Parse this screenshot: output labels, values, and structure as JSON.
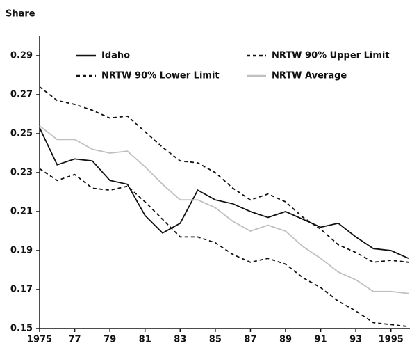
{
  "chart_data": {
    "type": "line",
    "y_label": "Share",
    "x": [
      1975,
      1976,
      1977,
      1978,
      1979,
      1980,
      1981,
      1982,
      1983,
      1984,
      1985,
      1986,
      1987,
      1988,
      1989,
      1990,
      1991,
      1992,
      1993,
      1994,
      1995,
      1996
    ],
    "series": [
      {
        "name": "Idaho",
        "color": "#111111",
        "style": "solid",
        "values": [
          0.253,
          0.234,
          0.237,
          0.236,
          0.226,
          0.224,
          0.208,
          0.199,
          0.204,
          0.221,
          0.216,
          0.214,
          0.21,
          0.207,
          0.21,
          0.206,
          0.202,
          0.204,
          0.197,
          0.191,
          0.19,
          0.186
        ]
      },
      {
        "name": "NRTW 90% Upper Limit",
        "color": "#111111",
        "style": "dashed",
        "values": [
          0.274,
          0.267,
          0.265,
          0.262,
          0.258,
          0.259,
          0.251,
          0.243,
          0.236,
          0.235,
          0.23,
          0.222,
          0.216,
          0.219,
          0.215,
          0.207,
          0.201,
          0.193,
          0.189,
          0.184,
          0.185,
          0.184
        ]
      },
      {
        "name": "NRTW 90% Lower Limit",
        "color": "#111111",
        "style": "dashed",
        "values": [
          0.232,
          0.226,
          0.229,
          0.222,
          0.221,
          0.223,
          0.215,
          0.206,
          0.197,
          0.197,
          0.194,
          0.188,
          0.184,
          0.186,
          0.183,
          0.176,
          0.171,
          0.164,
          0.159,
          0.153,
          0.152,
          0.151
        ]
      },
      {
        "name": "NRTW Average",
        "color": "#c0c0c0",
        "style": "solid",
        "values": [
          0.254,
          0.247,
          0.247,
          0.242,
          0.24,
          0.241,
          0.233,
          0.224,
          0.216,
          0.216,
          0.212,
          0.205,
          0.2,
          0.203,
          0.2,
          0.192,
          0.186,
          0.179,
          0.175,
          0.169,
          0.169,
          0.168
        ]
      }
    ],
    "xlim": [
      1975,
      1996
    ],
    "xticks": [
      {
        "value": 1975,
        "label": "1975"
      },
      {
        "value": 1977,
        "label": "77"
      },
      {
        "value": 1979,
        "label": "79"
      },
      {
        "value": 1981,
        "label": "81"
      },
      {
        "value": 1983,
        "label": "83"
      },
      {
        "value": 1985,
        "label": "85"
      },
      {
        "value": 1987,
        "label": "87"
      },
      {
        "value": 1989,
        "label": "89"
      },
      {
        "value": 1991,
        "label": "91"
      },
      {
        "value": 1993,
        "label": "93"
      },
      {
        "value": 1995,
        "label": "1995"
      }
    ],
    "ylim": [
      0.15,
      0.3
    ],
    "yticks": [
      0.15,
      0.17,
      0.19,
      0.21,
      0.23,
      0.25,
      0.27,
      0.29
    ],
    "grid": false
  }
}
